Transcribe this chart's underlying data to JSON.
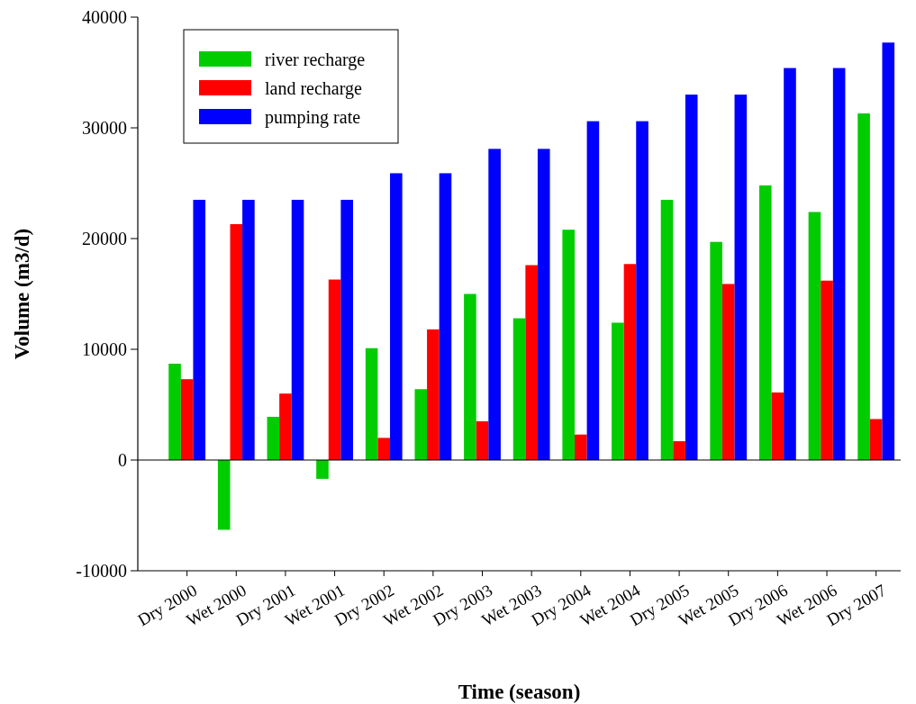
{
  "chart_data": {
    "type": "bar",
    "xlabel": "Time (season)",
    "ylabel": "Volume (m3/d)",
    "categories": [
      "Dry 2000",
      "Wet 2000",
      "Dry 2001",
      "Wet 2001",
      "Dry 2002",
      "Wet 2002",
      "Dry 2003",
      "Wet 2003",
      "Dry 2004",
      "Wet 2004",
      "Dry 2005",
      "Wet 2005",
      "Dry 2006",
      "Wet 2006",
      "Dry 2007"
    ],
    "series": [
      {
        "name": "river recharge",
        "color": "#00cc00",
        "values": [
          8700,
          -6300,
          3900,
          -1700,
          10100,
          6400,
          15000,
          12800,
          20800,
          12400,
          23500,
          19700,
          24800,
          22400,
          31300
        ]
      },
      {
        "name": "land recharge",
        "color": "#ff0000",
        "values": [
          7300,
          21300,
          6000,
          16300,
          2000,
          11800,
          3500,
          17600,
          2300,
          17700,
          1700,
          15900,
          6100,
          16200,
          3700
        ]
      },
      {
        "name": "pumping rate",
        "color": "#0000ff",
        "values": [
          23500,
          23500,
          23500,
          23500,
          25900,
          25900,
          28100,
          28100,
          30600,
          30600,
          33000,
          33000,
          35400,
          35400,
          37700
        ]
      }
    ],
    "ylim": [
      -10000,
      40000
    ],
    "yticks": [
      -10000,
      0,
      10000,
      20000,
      30000,
      40000
    ],
    "ref_lines": [
      {
        "axis": "y",
        "value": 0
      }
    ],
    "legend": "top left",
    "grid": false
  }
}
